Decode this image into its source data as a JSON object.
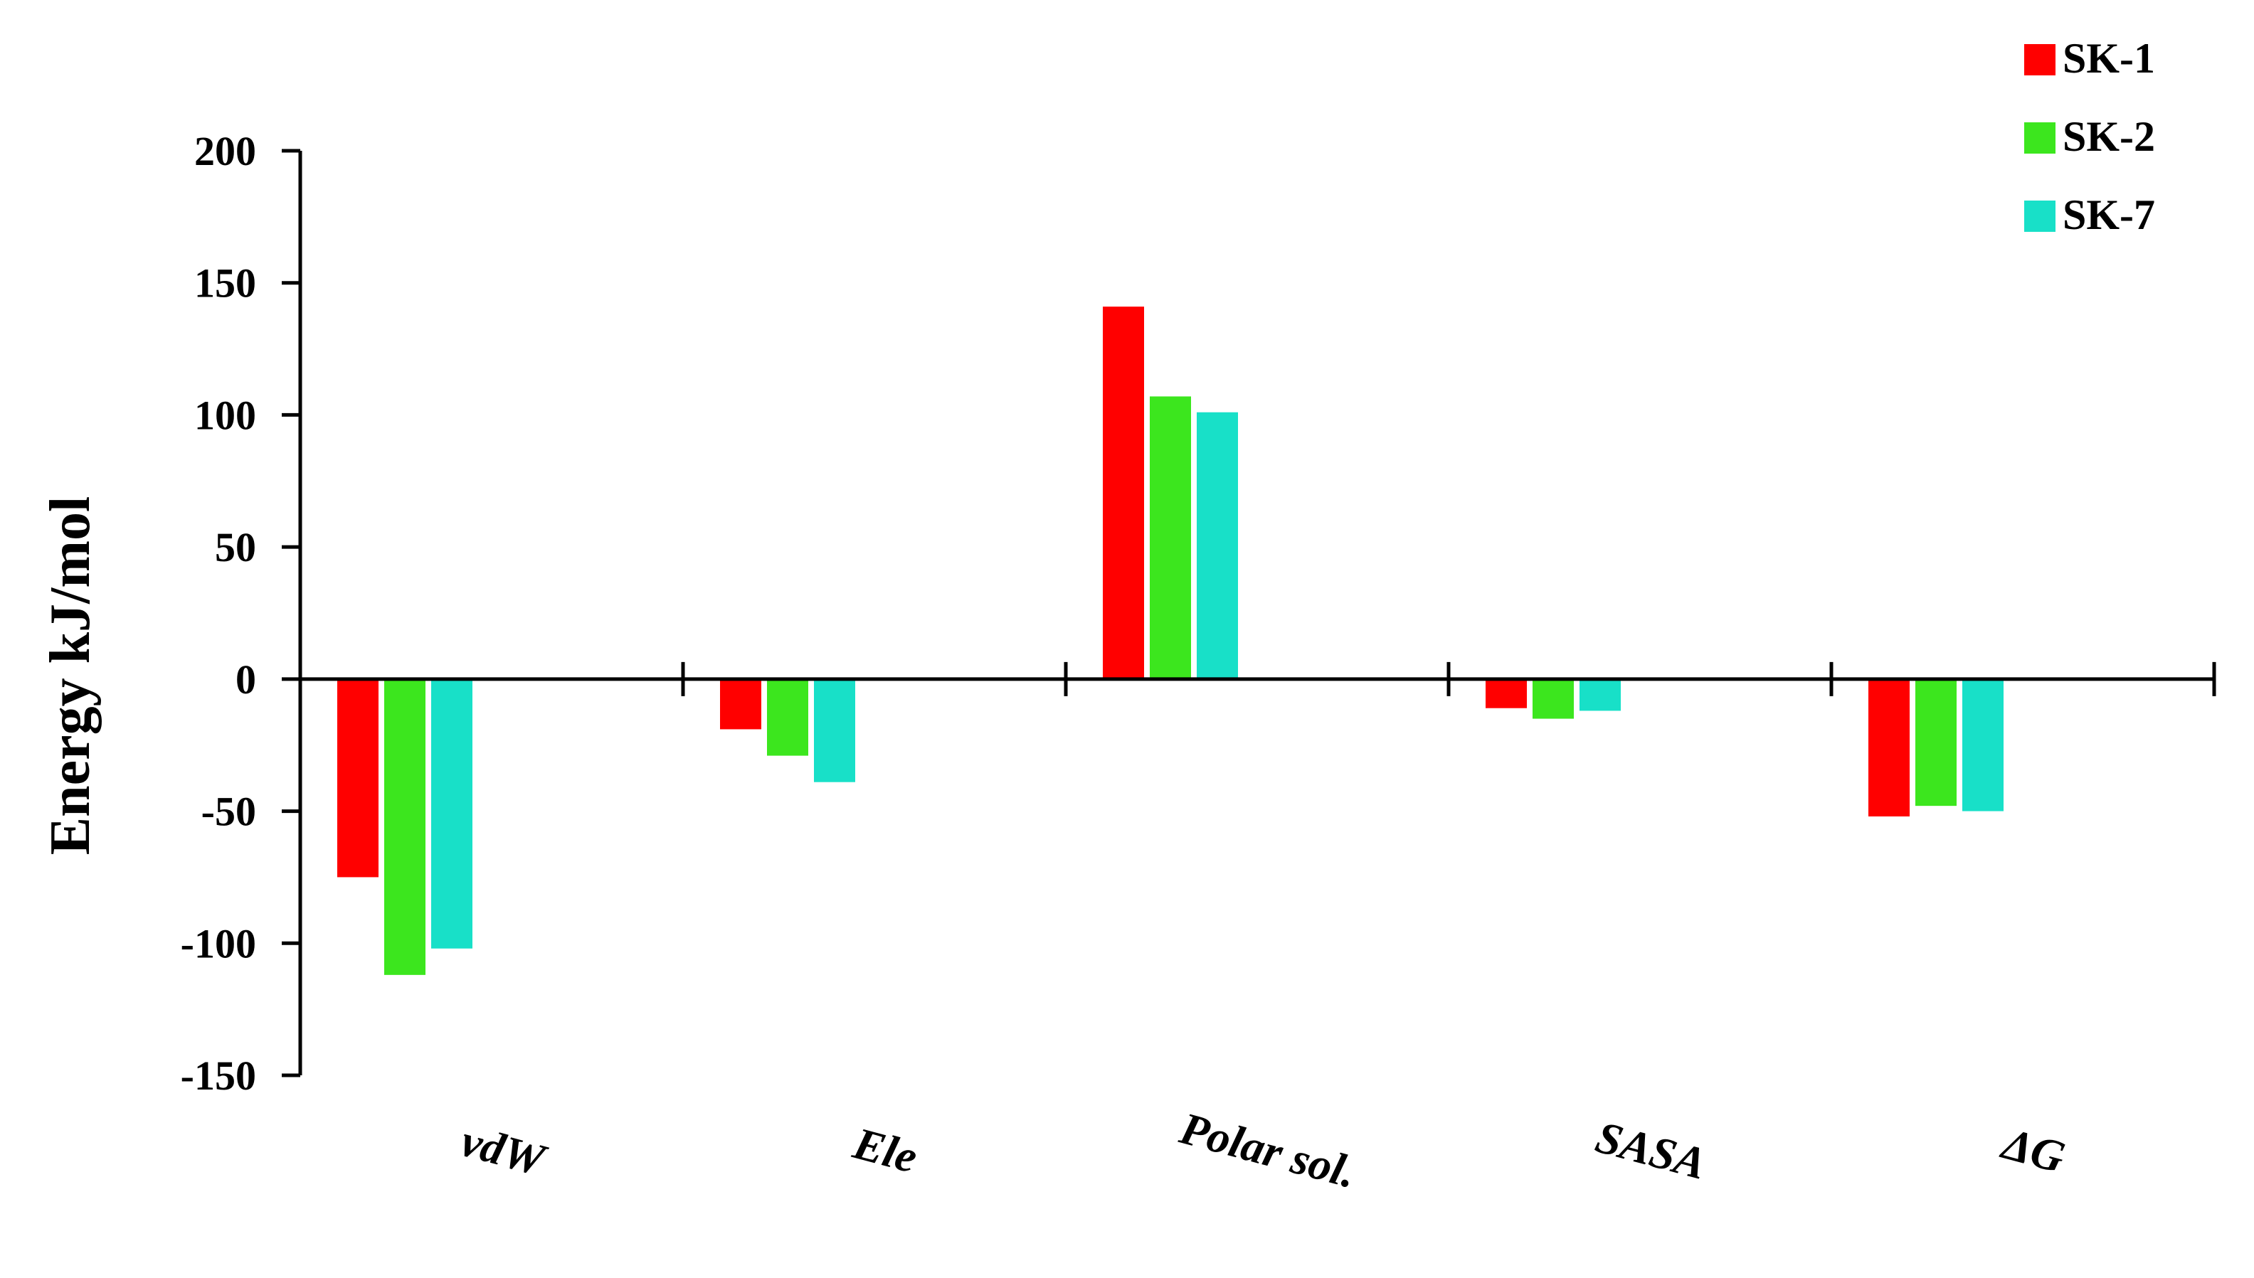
{
  "chart_data": {
    "type": "bar",
    "title": "",
    "ylabel": "Energy kJ/mol",
    "xlabel": "",
    "categories": [
      "vdW",
      "Ele",
      "Polar sol.",
      "SASA",
      "ΔG"
    ],
    "series": [
      {
        "name": "SK-1",
        "color": "#ff0000",
        "values": [
          -75,
          -19,
          141,
          -11,
          -52
        ]
      },
      {
        "name": "SK-2",
        "color": "#3ce61e",
        "values": [
          -112,
          -29,
          107,
          -15,
          -48
        ]
      },
      {
        "name": "SK-7",
        "color": "#18e0c8",
        "values": [
          -102,
          -39,
          101,
          -12,
          -50
        ]
      }
    ],
    "ylim": [
      -150,
      200
    ],
    "yticks": [
      200,
      150,
      100,
      50,
      0,
      -50,
      -100,
      -150
    ],
    "ytick_labels": [
      "200",
      "150",
      "100",
      "50",
      "0",
      "-50",
      "-100",
      "-150"
    ],
    "grid": false,
    "legend_position": "top-right"
  }
}
